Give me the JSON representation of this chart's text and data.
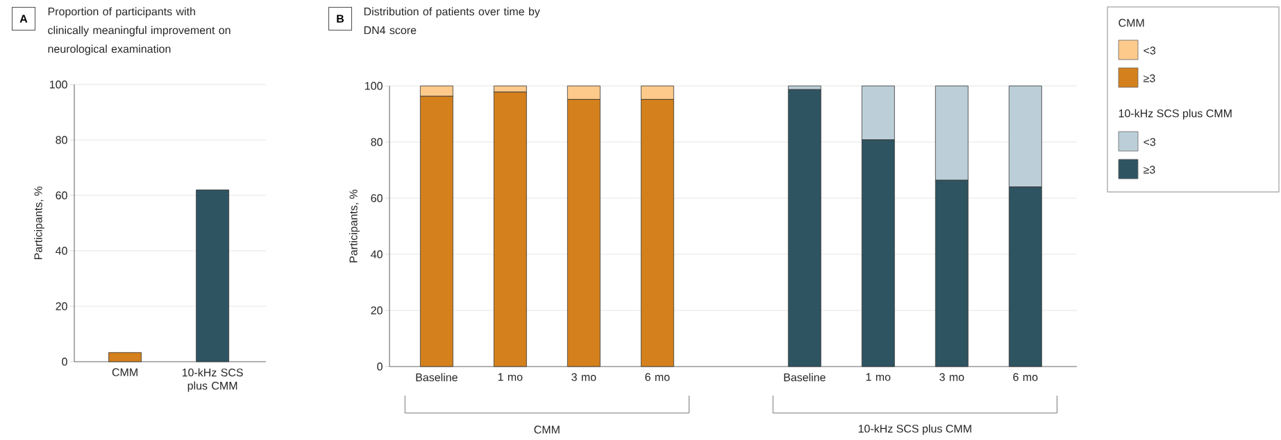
{
  "chart_data": [
    {
      "type": "bar",
      "title": "Proportion of participants with clinically meaningful improvement on neurological examination",
      "ylabel": "Participants, %",
      "categories": [
        "CMM",
        "10-kHz SCS plus CMM"
      ],
      "values": [
        3.3,
        62
      ],
      "colors": [
        "#d4801c",
        "#2e5461"
      ],
      "ylim": [
        0,
        100
      ],
      "yticks": [
        0,
        20,
        40,
        60,
        80,
        100
      ],
      "grid": "y",
      "annotations": [
        "A"
      ]
    },
    {
      "type": "bar",
      "stacked": true,
      "title": "Distribution of patients over time by DN4 score",
      "ylabel": "Participants, %",
      "categories": [
        "Baseline",
        "1 mo",
        "3 mo",
        "6 mo",
        null,
        "Baseline",
        "1 mo",
        "3 mo",
        "6 mo"
      ],
      "series": [
        {
          "name": "≥3",
          "color": "#d4801c",
          "values": [
            96.3,
            97.8,
            95.2,
            95.2,
            null,
            null,
            null,
            null,
            null
          ]
        },
        {
          "name": "<3",
          "color": "#fdca8c",
          "values": [
            3.7,
            2.2,
            4.8,
            4.8,
            null,
            null,
            null,
            null,
            null
          ]
        },
        {
          "name": "≥3",
          "color": "#2e5461",
          "values": [
            null,
            null,
            null,
            null,
            null,
            98.7,
            80.8,
            66.4,
            64.0
          ]
        },
        {
          "name": "<3",
          "color": "#bccfd8",
          "values": [
            null,
            null,
            null,
            null,
            null,
            1.3,
            19.2,
            33.6,
            36.0
          ]
        }
      ],
      "ylim": [
        0,
        100
      ],
      "yticks": [
        0,
        20,
        40,
        60,
        80,
        100
      ],
      "grid": "y",
      "legend": "right",
      "annotations": [
        "B",
        "CMM",
        "10-kHz SCS plus CMM",
        "CMM",
        "10-kHz SCS plus CMM"
      ]
    }
  ]
}
